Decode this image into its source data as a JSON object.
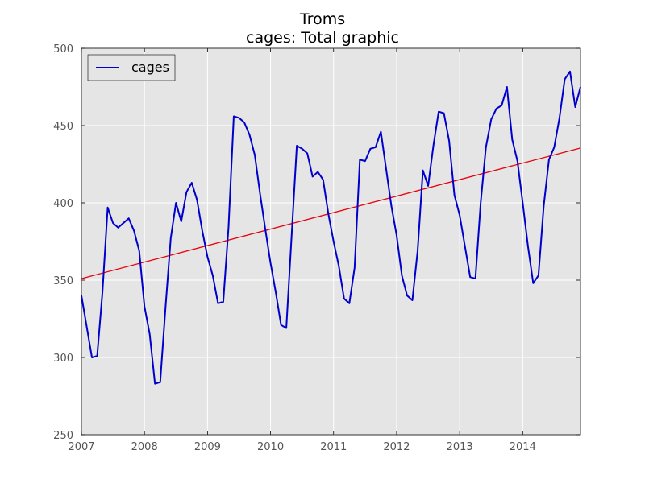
{
  "title": "Troms",
  "subtitle": "cages: Total graphic",
  "colors": {
    "background": "#e5e5e5",
    "series": "#0000cc",
    "trend": "#e8000b",
    "grid": "#ffffff"
  },
  "chart_data": {
    "type": "line",
    "title": "Troms",
    "subtitle": "cages: Total graphic",
    "xlabel": "",
    "ylabel": "",
    "xlim": [
      2007.0,
      2014.9167
    ],
    "ylim": [
      250,
      500
    ],
    "xticks": [
      "2007",
      "2008",
      "2009",
      "2010",
      "2011",
      "2012",
      "2013",
      "2014"
    ],
    "yticks": [
      "250",
      "300",
      "350",
      "400",
      "450",
      "500"
    ],
    "grid": true,
    "legend": {
      "position": "top-left",
      "entries": [
        "cages"
      ]
    },
    "series": [
      {
        "name": "cages",
        "x": [
          "2007-01",
          "2007-02",
          "2007-03",
          "2007-04",
          "2007-05",
          "2007-06",
          "2007-07",
          "2007-08",
          "2007-09",
          "2007-10",
          "2007-11",
          "2007-12",
          "2008-01",
          "2008-02",
          "2008-03",
          "2008-04",
          "2008-05",
          "2008-06",
          "2008-07",
          "2008-08",
          "2008-09",
          "2008-10",
          "2008-11",
          "2008-12",
          "2009-01",
          "2009-02",
          "2009-03",
          "2009-04",
          "2009-05",
          "2009-06",
          "2009-07",
          "2009-08",
          "2009-09",
          "2009-10",
          "2009-11",
          "2009-12",
          "2010-01",
          "2010-02",
          "2010-03",
          "2010-04",
          "2010-05",
          "2010-06",
          "2010-07",
          "2010-08",
          "2010-09",
          "2010-10",
          "2010-11",
          "2010-12",
          "2011-01",
          "2011-02",
          "2011-03",
          "2011-04",
          "2011-05",
          "2011-06",
          "2011-07",
          "2011-08",
          "2011-09",
          "2011-10",
          "2011-11",
          "2011-12",
          "2012-01",
          "2012-02",
          "2012-03",
          "2012-04",
          "2012-05",
          "2012-06",
          "2012-07",
          "2012-08",
          "2012-09",
          "2012-10",
          "2012-11",
          "2012-12",
          "2013-01",
          "2013-02",
          "2013-03",
          "2013-04",
          "2013-05",
          "2013-06",
          "2013-07",
          "2013-08",
          "2013-09",
          "2013-10",
          "2013-11",
          "2013-12",
          "2014-01",
          "2014-02",
          "2014-03",
          "2014-04",
          "2014-05",
          "2014-06",
          "2014-07",
          "2014-08",
          "2014-09",
          "2014-10",
          "2014-11",
          "2014-12"
        ],
        "values": [
          340,
          320,
          300,
          301,
          342,
          397,
          387,
          384,
          387,
          390,
          382,
          369,
          333,
          315,
          283,
          284,
          332,
          377,
          400,
          388,
          407,
          413,
          402,
          382,
          365,
          353,
          335,
          336,
          384,
          456,
          455,
          452,
          444,
          431,
          406,
          383,
          361,
          342,
          321,
          319,
          378,
          437,
          435,
          432,
          417,
          420,
          415,
          393,
          375,
          359,
          338,
          335,
          358,
          428,
          427,
          435,
          436,
          446,
          422,
          398,
          379,
          353,
          340,
          337,
          369,
          421,
          411,
          437,
          459,
          458,
          440,
          405,
          392,
          372,
          352,
          351,
          400,
          436,
          454,
          461,
          463,
          475,
          441,
          427,
          400,
          372,
          348,
          353,
          398,
          428,
          436,
          455,
          480,
          485,
          462,
          475
        ]
      },
      {
        "name": "",
        "kind": "trend",
        "x": [
          "2007-01",
          "2014-12"
        ],
        "values": [
          351,
          435.5
        ]
      }
    ]
  }
}
